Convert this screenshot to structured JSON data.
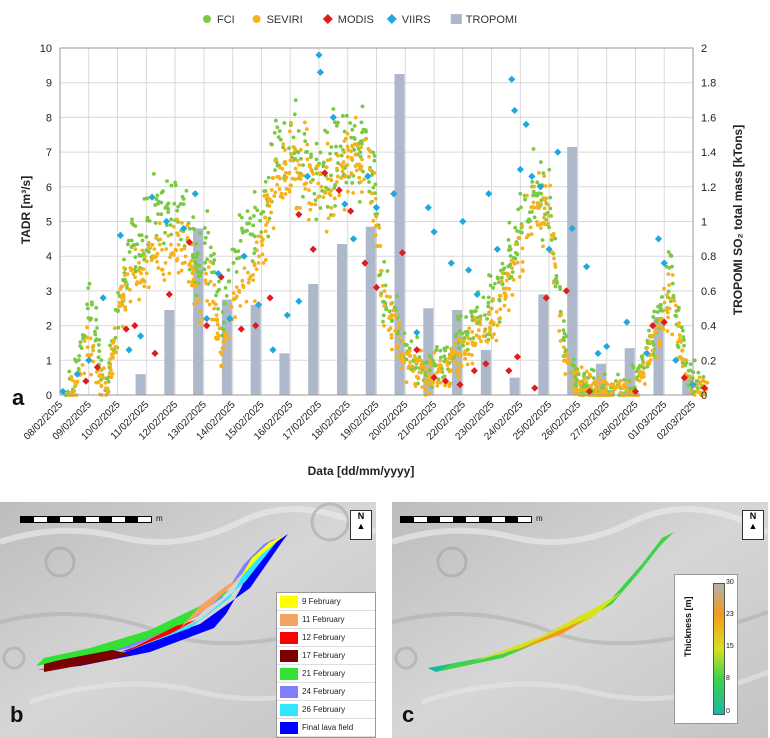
{
  "chart_data": {
    "type": "scatter",
    "panel_label": "a",
    "xlabel": "Data [dd/mm/yyyy]",
    "ylabel": "TADR [m³/s]",
    "y2label": "TROPOMI SO₂ total mass  [kTons]",
    "ylim": [
      0,
      10
    ],
    "y2lim": [
      0,
      2
    ],
    "yticks": [
      "0",
      "1",
      "2",
      "3",
      "4",
      "5",
      "6",
      "7",
      "8",
      "9",
      "10"
    ],
    "y2ticks": [
      "0",
      "0.2",
      "0.4",
      "0.6",
      "0.8",
      "1",
      "1.2",
      "1.4",
      "1.6",
      "1.8",
      "2"
    ],
    "categories": [
      "08/02/2025",
      "09/02/2025",
      "10/02/2025",
      "11/02/2025",
      "12/02/2025",
      "13/02/2025",
      "14/02/2025",
      "15/02/2025",
      "16/02/2025",
      "17/02/2025",
      "18/02/2025",
      "19/02/2025",
      "20/02/2025",
      "21/02/2025",
      "22/02/2025",
      "23/02/2025",
      "24/02/2025",
      "25/02/2025",
      "26/02/2025",
      "27/02/2025",
      "28/02/2025",
      "01/03/2025",
      "02/03/2025"
    ],
    "grid": true,
    "legend_position": "top",
    "series": [
      {
        "name": "FCI",
        "kind": "points",
        "color": "#7ac943",
        "trend": [
          [
            0.2,
            0
          ],
          [
            0.6,
            0.6
          ],
          [
            1.0,
            2.8
          ],
          [
            1.3,
            1.5
          ],
          [
            1.6,
            0
          ],
          [
            2.1,
            3.0
          ],
          [
            2.5,
            4.5
          ],
          [
            3.0,
            4.8
          ],
          [
            3.5,
            5.2
          ],
          [
            4.0,
            5.6
          ],
          [
            4.5,
            5.0
          ],
          [
            4.8,
            3.5
          ],
          [
            5.2,
            4.3
          ],
          [
            5.6,
            2.0
          ],
          [
            6.0,
            3.8
          ],
          [
            6.5,
            4.6
          ],
          [
            7.0,
            5.2
          ],
          [
            7.5,
            6.6
          ],
          [
            8.0,
            7.3
          ],
          [
            8.5,
            6.6
          ],
          [
            9.0,
            6.3
          ],
          [
            9.5,
            6.7
          ],
          [
            10.0,
            6.9
          ],
          [
            10.5,
            7.1
          ],
          [
            10.9,
            6.5
          ],
          [
            11.2,
            3.2
          ],
          [
            11.6,
            2.5
          ],
          [
            12.0,
            1.2
          ],
          [
            12.5,
            0.9
          ],
          [
            13.0,
            0.8
          ],
          [
            13.5,
            1.0
          ],
          [
            14.0,
            1.6
          ],
          [
            14.5,
            2.3
          ],
          [
            15.0,
            2.6
          ],
          [
            15.5,
            3.6
          ],
          [
            16.0,
            4.8
          ],
          [
            16.5,
            5.8
          ],
          [
            17.0,
            5.6
          ],
          [
            17.2,
            4.0
          ],
          [
            17.5,
            1.5
          ],
          [
            18.0,
            0.3
          ],
          [
            19.0,
            0.1
          ],
          [
            20.0,
            0.2
          ],
          [
            20.5,
            1.5
          ],
          [
            21.0,
            2.8
          ],
          [
            21.3,
            3.4
          ],
          [
            21.6,
            1.5
          ],
          [
            22.0,
            0.4
          ],
          [
            22.5,
            0.3
          ]
        ]
      },
      {
        "name": "SEVIRI",
        "kind": "points",
        "color": "#f7b21b",
        "trend": [
          [
            0.3,
            0
          ],
          [
            0.7,
            0.4
          ],
          [
            1.0,
            1.4
          ],
          [
            1.3,
            0.6
          ],
          [
            1.6,
            0
          ],
          [
            2.1,
            2.6
          ],
          [
            2.5,
            3.4
          ],
          [
            3.0,
            3.8
          ],
          [
            3.5,
            4.1
          ],
          [
            4.0,
            4.4
          ],
          [
            4.5,
            4.0
          ],
          [
            4.8,
            2.6
          ],
          [
            5.2,
            3.2
          ],
          [
            5.6,
            1.2
          ],
          [
            6.0,
            2.6
          ],
          [
            6.5,
            3.3
          ],
          [
            7.0,
            4.1
          ],
          [
            7.5,
            5.9
          ],
          [
            8.0,
            6.5
          ],
          [
            8.5,
            6.3
          ],
          [
            9.0,
            6.0
          ],
          [
            9.5,
            6.3
          ],
          [
            10.0,
            6.5
          ],
          [
            10.5,
            6.8
          ],
          [
            10.9,
            6.2
          ],
          [
            11.2,
            2.6
          ],
          [
            11.6,
            1.9
          ],
          [
            12.0,
            0.8
          ],
          [
            12.5,
            0.6
          ],
          [
            13.0,
            0.6
          ],
          [
            13.5,
            0.9
          ],
          [
            14.0,
            1.3
          ],
          [
            14.5,
            1.8
          ],
          [
            15.0,
            2.0
          ],
          [
            15.5,
            3.0
          ],
          [
            16.0,
            4.2
          ],
          [
            16.5,
            5.4
          ],
          [
            17.0,
            5.3
          ],
          [
            17.2,
            3.6
          ],
          [
            17.5,
            1.2
          ],
          [
            18.0,
            0.2
          ],
          [
            19.0,
            0.1
          ],
          [
            20.0,
            0.1
          ],
          [
            20.5,
            1.2
          ],
          [
            21.0,
            2.4
          ],
          [
            21.3,
            2.9
          ],
          [
            21.6,
            1.2
          ],
          [
            22.0,
            0.3
          ],
          [
            22.5,
            0.2
          ]
        ]
      },
      {
        "name": "MODIS",
        "kind": "points",
        "color": "#e31a1c",
        "points": [
          [
            0.9,
            0.4
          ],
          [
            1.3,
            0.8
          ],
          [
            2.3,
            1.9
          ],
          [
            2.6,
            2.0
          ],
          [
            3.3,
            1.2
          ],
          [
            3.8,
            2.9
          ],
          [
            4.5,
            4.4
          ],
          [
            5.1,
            2.0
          ],
          [
            5.6,
            3.4
          ],
          [
            6.3,
            1.9
          ],
          [
            6.8,
            2.0
          ],
          [
            7.3,
            2.8
          ],
          [
            8.3,
            5.2
          ],
          [
            8.8,
            4.2
          ],
          [
            9.2,
            6.4
          ],
          [
            9.7,
            5.9
          ],
          [
            10.1,
            5.3
          ],
          [
            10.6,
            3.8
          ],
          [
            11.0,
            3.1
          ],
          [
            11.9,
            4.1
          ],
          [
            12.4,
            1.3
          ],
          [
            13.0,
            0.5
          ],
          [
            13.4,
            0.4
          ],
          [
            13.9,
            0.3
          ],
          [
            14.4,
            0.7
          ],
          [
            14.8,
            0.9
          ],
          [
            15.6,
            0.7
          ],
          [
            15.9,
            1.1
          ],
          [
            16.5,
            0.2
          ],
          [
            16.9,
            2.8
          ],
          [
            17.6,
            3.0
          ],
          [
            18.4,
            0.1
          ],
          [
            20.0,
            0.1
          ],
          [
            20.6,
            2.0
          ],
          [
            21.0,
            2.1
          ],
          [
            21.7,
            0.5
          ],
          [
            22.4,
            0.2
          ]
        ]
      },
      {
        "name": "VIIRS",
        "kind": "points",
        "color": "#1fa8e0",
        "points": [
          [
            0.1,
            0.1
          ],
          [
            0.6,
            0.6
          ],
          [
            1.0,
            1.0
          ],
          [
            1.5,
            2.8
          ],
          [
            2.1,
            4.6
          ],
          [
            2.4,
            1.3
          ],
          [
            2.8,
            1.7
          ],
          [
            3.2,
            5.7
          ],
          [
            3.7,
            5.0
          ],
          [
            4.3,
            4.8
          ],
          [
            4.7,
            5.8
          ],
          [
            5.1,
            2.2
          ],
          [
            5.5,
            3.5
          ],
          [
            5.9,
            2.2
          ],
          [
            6.4,
            4.0
          ],
          [
            6.9,
            2.6
          ],
          [
            7.4,
            1.3
          ],
          [
            7.9,
            2.3
          ],
          [
            8.3,
            2.7
          ],
          [
            8.6,
            6.3
          ],
          [
            9.0,
            9.8
          ],
          [
            9.05,
            9.3
          ],
          [
            9.5,
            8.0
          ],
          [
            9.9,
            5.5
          ],
          [
            10.2,
            4.5
          ],
          [
            10.7,
            6.3
          ],
          [
            11.0,
            5.4
          ],
          [
            11.6,
            5.8
          ],
          [
            12.4,
            1.8
          ],
          [
            12.8,
            5.4
          ],
          [
            13.0,
            4.7
          ],
          [
            13.6,
            3.8
          ],
          [
            14.0,
            5.0
          ],
          [
            14.2,
            3.6
          ],
          [
            14.5,
            2.9
          ],
          [
            14.9,
            5.8
          ],
          [
            15.2,
            4.2
          ],
          [
            15.7,
            9.1
          ],
          [
            15.8,
            8.2
          ],
          [
            16.2,
            7.8
          ],
          [
            16.4,
            6.3
          ],
          [
            16.0,
            6.5
          ],
          [
            16.7,
            6.0
          ],
          [
            17.0,
            4.2
          ],
          [
            17.3,
            7.0
          ],
          [
            17.8,
            4.8
          ],
          [
            18.3,
            3.7
          ],
          [
            18.7,
            1.2
          ],
          [
            19.0,
            1.4
          ],
          [
            19.7,
            2.1
          ],
          [
            20.4,
            1.2
          ],
          [
            20.8,
            4.5
          ],
          [
            21.0,
            3.8
          ],
          [
            21.4,
            1.0
          ],
          [
            22.0,
            0.3
          ]
        ]
      },
      {
        "name": "TROPOMI",
        "kind": "bars",
        "color": "#adb9ca",
        "bars": [
          [
            2.8,
            0.12
          ],
          [
            3.8,
            0.49
          ],
          [
            4.8,
            0.96
          ],
          [
            5.8,
            0.55
          ],
          [
            6.8,
            0.52
          ],
          [
            7.8,
            0.24
          ],
          [
            8.8,
            0.64
          ],
          [
            9.8,
            0.87
          ],
          [
            10.8,
            0.97
          ],
          [
            11.8,
            1.85
          ],
          [
            12.8,
            0.5
          ],
          [
            13.8,
            0.49
          ],
          [
            14.8,
            0.26
          ],
          [
            15.8,
            0.1
          ],
          [
            16.8,
            0.58
          ],
          [
            17.8,
            1.43
          ],
          [
            18.8,
            0.18
          ],
          [
            19.8,
            0.27
          ],
          [
            20.8,
            0.45
          ],
          [
            21.8,
            0.1
          ]
        ]
      }
    ]
  },
  "panel_b": {
    "label": "b",
    "legend": [
      {
        "label": "9 February",
        "color": "#ffff00"
      },
      {
        "label": "11 February",
        "color": "#f4a460"
      },
      {
        "label": "12 February",
        "color": "#ff0000"
      },
      {
        "label": "17 February",
        "color": "#7b0000"
      },
      {
        "label": "21 February",
        "color": "#32e232"
      },
      {
        "label": "24 February",
        "color": "#8080ff"
      },
      {
        "label": "26 February",
        "color": "#33e6ff"
      },
      {
        "label": "Final lava field",
        "color": "#0000ff"
      }
    ]
  },
  "panel_c": {
    "label": "c",
    "colorbar_title": "Thickness [m]",
    "colorbar_ticks": [
      "30",
      "23",
      "15",
      "8",
      "0"
    ]
  },
  "map": {
    "north_label": "N",
    "scale_label": "m"
  }
}
